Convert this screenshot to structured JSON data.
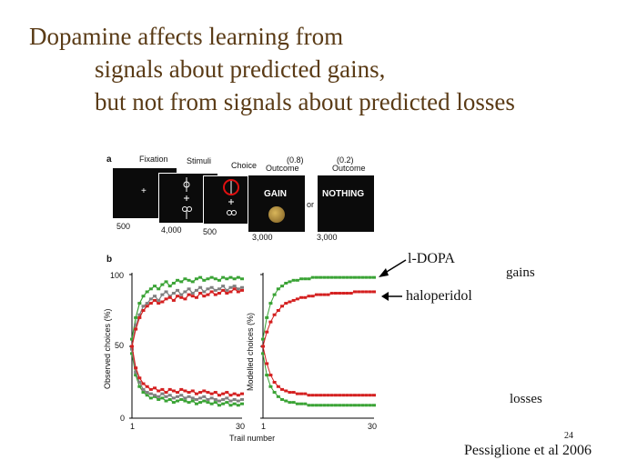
{
  "slide": {
    "title_line1": "Dopamine affects learning from",
    "title_line2": "signals about predicted gains,",
    "title_line3": "but not from signals about predicted losses",
    "page_number": "24",
    "citation": "Pessiglione et al 2006"
  },
  "panel_a": {
    "label": "a",
    "phases": [
      "Fixation",
      "Stimuli",
      "Choice",
      "Outcome",
      "Outcome"
    ],
    "probs": [
      "(0.8)",
      "(0.2)"
    ],
    "gain_text": "GAIN",
    "nothing_text": "NOTHING",
    "or_text": "or",
    "durations": [
      "500",
      "4,000",
      "500",
      "3,000",
      "3,000"
    ],
    "fixation_symbol": "+"
  },
  "panel_b": {
    "label": "b",
    "ylabel_left": "Observed choices (%)",
    "ylabel_right": "Modelled choices (%)",
    "xlabel": "Trail number",
    "yticks": [
      "100",
      "50",
      "0"
    ],
    "xticks_left": [
      "1",
      "30"
    ],
    "xticks_right": [
      "1",
      "30"
    ]
  },
  "annotations": {
    "ldopa": "l-DOPA",
    "haloperidol": "haloperidol",
    "gains": "gains",
    "losses": "losses"
  },
  "colors": {
    "title": "#5a3b16",
    "ldopa": "#3aa335",
    "haloperidol": "#d42020",
    "placebo": "#808080"
  },
  "chart_data": [
    {
      "type": "line",
      "xlabel": "Trail number",
      "ylabel": "Observed choices (%)",
      "xlim": [
        1,
        30
      ],
      "ylim": [
        0,
        100
      ],
      "series": [
        {
          "color": "#3aa335",
          "values": [
            55,
            70,
            80,
            85,
            88,
            90,
            92,
            90,
            93,
            95,
            92,
            94,
            96,
            95,
            97,
            96,
            95,
            97,
            98,
            96,
            97,
            98,
            97,
            96,
            98,
            97,
            98,
            97,
            98,
            97
          ]
        },
        {
          "color": "#808080",
          "values": [
            50,
            65,
            72,
            78,
            80,
            83,
            85,
            82,
            86,
            88,
            85,
            87,
            89,
            86,
            88,
            90,
            87,
            89,
            91,
            88,
            90,
            91,
            89,
            90,
            92,
            89,
            91,
            92,
            90,
            91
          ]
        },
        {
          "color": "#d42020",
          "values": [
            50,
            62,
            70,
            75,
            78,
            80,
            82,
            80,
            81,
            83,
            84,
            82,
            85,
            84,
            83,
            86,
            85,
            84,
            87,
            85,
            86,
            88,
            86,
            87,
            89,
            87,
            88,
            90,
            88,
            89
          ]
        },
        {
          "color": "#3aa335",
          "values": [
            45,
            30,
            22,
            18,
            16,
            14,
            15,
            13,
            14,
            12,
            13,
            11,
            12,
            13,
            12,
            11,
            12,
            10,
            11,
            12,
            11,
            10,
            11,
            9,
            10,
            11,
            9,
            10,
            9,
            10
          ]
        },
        {
          "color": "#808080",
          "values": [
            48,
            32,
            25,
            20,
            18,
            17,
            16,
            15,
            17,
            15,
            16,
            14,
            15,
            16,
            14,
            15,
            14,
            13,
            14,
            15,
            13,
            14,
            13,
            12,
            13,
            14,
            12,
            13,
            12,
            13
          ]
        },
        {
          "color": "#d42020",
          "values": [
            50,
            35,
            28,
            24,
            22,
            20,
            21,
            19,
            20,
            18,
            20,
            19,
            18,
            20,
            19,
            18,
            19,
            17,
            18,
            19,
            18,
            17,
            18,
            16,
            17,
            18,
            16,
            17,
            16,
            17
          ]
        }
      ]
    },
    {
      "type": "line",
      "ylabel": "Modelled choices (%)",
      "xlim": [
        1,
        30
      ],
      "ylim": [
        0,
        100
      ],
      "series": [
        {
          "color": "#3aa335",
          "values": [
            55,
            70,
            80,
            86,
            90,
            92,
            94,
            95,
            96,
            96,
            97,
            97,
            97,
            98,
            98,
            98,
            98,
            98,
            98,
            98,
            98,
            98,
            98,
            98,
            98,
            98,
            98,
            98,
            98,
            98
          ]
        },
        {
          "color": "#d42020",
          "values": [
            50,
            60,
            67,
            72,
            75,
            78,
            80,
            81,
            82,
            83,
            84,
            84,
            85,
            85,
            86,
            86,
            86,
            86,
            87,
            87,
            87,
            87,
            87,
            87,
            88,
            88,
            88,
            88,
            88,
            88
          ]
        },
        {
          "color": "#3aa335",
          "values": [
            45,
            30,
            22,
            18,
            15,
            13,
            12,
            11,
            11,
            10,
            10,
            10,
            9,
            9,
            9,
            9,
            9,
            9,
            9,
            9,
            9,
            9,
            9,
            9,
            9,
            9,
            9,
            9,
            9,
            9
          ]
        },
        {
          "color": "#d42020",
          "values": [
            50,
            38,
            30,
            25,
            22,
            20,
            19,
            18,
            18,
            17,
            17,
            17,
            16,
            16,
            16,
            16,
            16,
            16,
            16,
            16,
            16,
            16,
            16,
            16,
            16,
            16,
            16,
            16,
            16,
            16
          ]
        }
      ]
    }
  ]
}
